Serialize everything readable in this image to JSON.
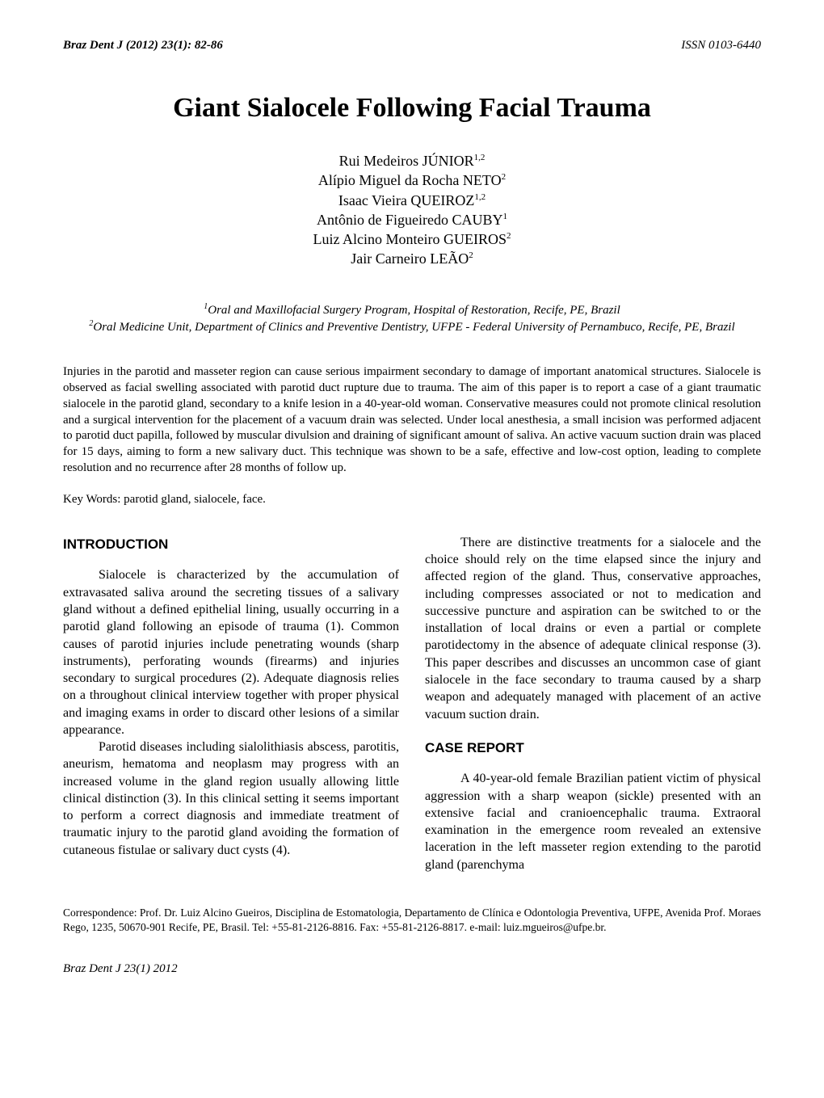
{
  "header": {
    "journal_ref": "Braz Dent J (2012) 23(1): 82-86",
    "issn": "ISSN 0103-6440"
  },
  "title": "Giant Sialocele Following Facial Trauma",
  "authors": [
    {
      "given": "Rui Medeiros",
      "surname": "JÚNIOR",
      "aff": "1,2"
    },
    {
      "given": "Alípio Miguel da Rocha",
      "surname": "NETO",
      "aff": "2"
    },
    {
      "given": "Isaac Vieira",
      "surname": "QUEIROZ",
      "aff": "1,2"
    },
    {
      "given": "Antônio de Figueiredo",
      "surname": "CAUBY",
      "aff": "1"
    },
    {
      "given": "Luiz Alcino Monteiro",
      "surname": "GUEIROS",
      "aff": "2"
    },
    {
      "given": "Jair Carneiro",
      "surname": "LEÃO",
      "aff": "2"
    }
  ],
  "affiliations": [
    {
      "num": "1",
      "text": "Oral and Maxillofacial Surgery Program, Hospital of Restoration, Recife, PE, Brazil"
    },
    {
      "num": "2",
      "text": "Oral Medicine Unit, Department of Clinics and Preventive Dentistry, UFPE - Federal University of Pernambuco, Recife, PE, Brazil"
    }
  ],
  "abstract": "Injuries in the parotid and masseter region can cause serious impairment secondary to damage of important anatomical structures. Sialocele is observed as facial swelling associated with parotid duct rupture due to trauma. The aim of this paper is to report a case of a giant traumatic sialocele in the parotid gland, secondary to a knife lesion in a 40-year-old woman. Conservative measures could not promote clinical resolution and a surgical intervention for the placement of a vacuum drain was selected. Under local anesthesia, a small incision was performed adjacent to parotid duct papilla, followed by muscular divulsion and draining of significant amount of saliva. An active vacuum suction drain was placed for 15 days, aiming to form a new salivary duct. This technique was shown to be a safe, effective and low-cost option, leading to complete resolution and no recurrence after 28 months of follow up.",
  "keywords_line": "Key Words: parotid gland, sialocele, face.",
  "sections": {
    "introduction_heading": "INTRODUCTION",
    "case_heading": "CASE REPORT",
    "left_paragraphs": [
      "Sialocele is characterized by the accumulation of extravasated saliva around the secreting tissues of a salivary gland without a defined epithelial lining, usually occurring in a parotid gland following an episode of trauma (1). Common causes of parotid injuries include penetrating wounds (sharp instruments), perforating wounds (firearms) and injuries secondary to surgical procedures (2). Adequate diagnosis relies on a throughout clinical interview together with proper physical and imaging exams in order to discard other lesions of a similar appearance.",
      "Parotid diseases including sialolithiasis abscess, parotitis, aneurism, hematoma and neoplasm may progress with an increased volume in the gland region usually allowing little clinical distinction (3). In this clinical setting it seems important to perform a correct diagnosis and immediate treatment of traumatic injury to the parotid gland avoiding the formation of cutaneous fistulae or salivary duct cysts (4)."
    ],
    "right_top_paragraph": "There are distinctive treatments for a sialocele and the choice should rely on the time elapsed since the injury and affected region of the gland. Thus, conservative approaches, including compresses associated or not to medication and successive puncture and aspiration can be switched to or the installation of local drains or even a partial or complete parotidectomy in the absence of adequate clinical response (3). This paper describes and discusses an uncommon case of giant sialocele in the face secondary to trauma caused by a sharp weapon and adequately managed with placement of an active vacuum suction drain.",
    "case_paragraph": "A 40-year-old female Brazilian patient victim of physical aggression with a sharp weapon (sickle) presented with an extensive facial and cranioencephalic trauma. Extraoral examination in the emergence room revealed an extensive laceration in the left masseter region extending to the parotid gland (parenchyma"
  },
  "correspondence": "Correspondence: Prof. Dr. Luiz Alcino Gueiros, Disciplina de Estomatologia, Departamento de Clínica e Odontologia Preventiva, UFPE, Avenida Prof. Moraes Rego, 1235, 50670-901 Recife, PE, Brasil. Tel: +55-81-2126-8816. Fax: +55-81-2126-8817. e-mail: luiz.mgueiros@ufpe.br.",
  "footer": "Braz Dent J 23(1) 2012"
}
